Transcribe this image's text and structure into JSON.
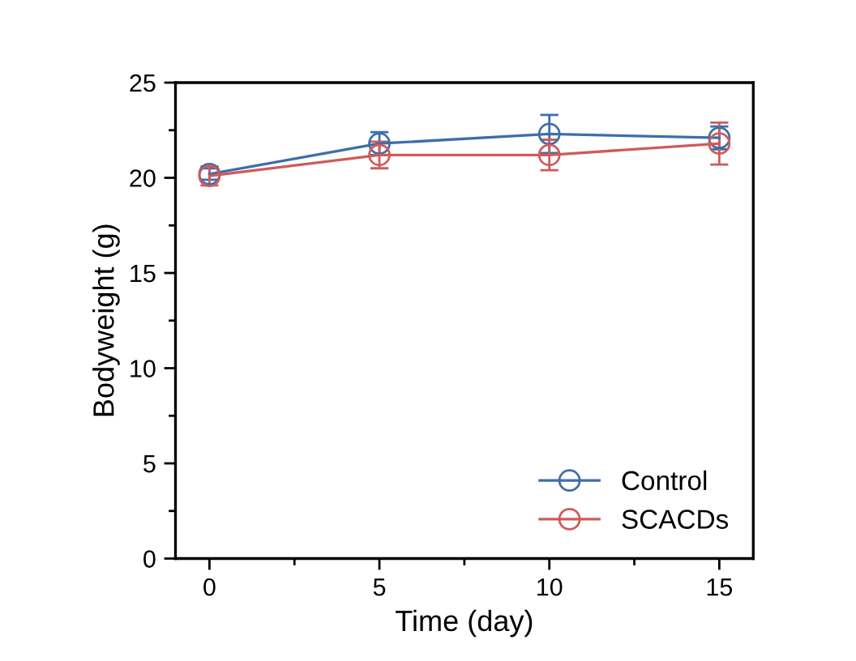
{
  "chart_data": {
    "type": "line",
    "xlabel": "Time (day)",
    "ylabel": "Bodyweight (g)",
    "x": [
      0,
      5,
      10,
      15
    ],
    "series": [
      {
        "name": "Control",
        "color": "#3d6fa8",
        "values": [
          20.2,
          21.8,
          22.3,
          22.1
        ],
        "errors": [
          0.3,
          0.6,
          1.0,
          0.6
        ]
      },
      {
        "name": "SCACDs",
        "color": "#cf5b5b",
        "values": [
          20.1,
          21.2,
          21.2,
          21.8
        ],
        "errors": [
          0.5,
          0.7,
          0.8,
          1.1
        ]
      }
    ],
    "xlim": [
      -1,
      16
    ],
    "xticks": [
      0,
      5,
      10,
      15
    ],
    "ylim": [
      0,
      25
    ],
    "yticks": [
      0,
      5,
      10,
      15,
      20,
      25
    ],
    "marker": "circle",
    "line_style": "solid",
    "legend": "bottom right",
    "grid": false
  }
}
